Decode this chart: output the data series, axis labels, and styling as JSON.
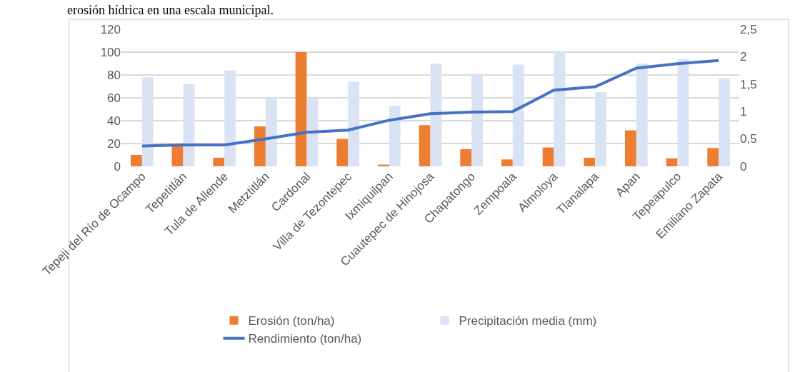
{
  "chart_data": {
    "type": "bar",
    "annotations": [
      "erosión hídrica en una escala municipal."
    ],
    "categories": [
      "Tepeji del Río de Ocampo",
      "Tepetitlán",
      "Tula de Allende",
      "Metztitlán",
      "Cardonal",
      "Villa de Tezontepec",
      "Ixmiquilpan",
      "Cuautepec de Hinojosa",
      "Chapatongo",
      "Zempoala",
      "Almoloya",
      "Tlanalapa",
      "Apan",
      "Tepeapulco",
      "Emiliano Zapata"
    ],
    "series": [
      {
        "name": "Erosión (ton/ha)",
        "color": "#ed7d31",
        "values": [
          10,
          18,
          7.5,
          35,
          100,
          24,
          1.5,
          36,
          15,
          6,
          16.5,
          7.5,
          31.5,
          7,
          16
        ]
      },
      {
        "name": "Precipitación media (mm)",
        "color": "#dae3f3",
        "values": [
          78,
          72,
          84,
          60,
          60,
          74,
          53,
          90,
          81,
          89,
          100,
          65,
          90,
          94,
          77
        ]
      },
      {
        "name": "Rendimiento (ton/ha)",
        "type": "line",
        "axis": "y2",
        "color": "#4472c4",
        "line_style": "solid",
        "values": [
          0.37,
          0.39,
          0.39,
          0.5,
          0.62,
          0.66,
          0.84,
          0.96,
          0.99,
          1.0,
          1.39,
          1.45,
          1.79,
          1.87,
          1.93
        ]
      }
    ],
    "ylim": [
      0,
      120
    ],
    "yticks": [
      0,
      20,
      40,
      60,
      80,
      100,
      120
    ],
    "y2lim": [
      0,
      2.5
    ],
    "y2ticks": [
      0,
      {
        "value": 0.5,
        "label": "0,5"
      },
      1,
      {
        "value": 1.5,
        "label": "1,5"
      },
      2,
      {
        "value": 2.5,
        "label": "2,5"
      }
    ],
    "grid": "y",
    "legend": "bottom",
    "marker": "none"
  }
}
